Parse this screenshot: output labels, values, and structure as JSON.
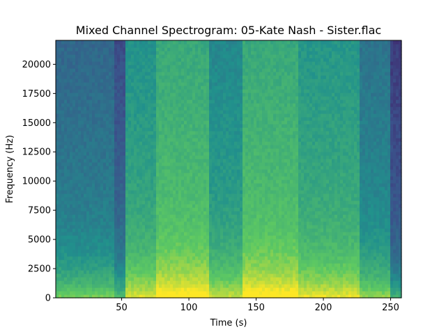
{
  "chart_data": {
    "type": "heatmap",
    "title": "Mixed Channel Spectrogram: 05-Kate Nash - Sister.flac",
    "xlabel": "Time (s)",
    "ylabel": "Frequency (Hz)",
    "xlim": [
      1,
      258
    ],
    "ylim": [
      0,
      22050
    ],
    "xticks": [
      50,
      100,
      150,
      200,
      250
    ],
    "yticks": [
      0,
      2500,
      5000,
      7500,
      10000,
      12500,
      15000,
      17500,
      20000
    ],
    "colormap": "viridis",
    "grid": false,
    "segments": [
      {
        "start": 1,
        "end": 45,
        "level": 0.45
      },
      {
        "start": 45,
        "end": 53,
        "level": 0.35
      },
      {
        "start": 53,
        "end": 76,
        "level": 0.62
      },
      {
        "start": 76,
        "end": 116,
        "level": 0.72
      },
      {
        "start": 116,
        "end": 140,
        "level": 0.58
      },
      {
        "start": 140,
        "end": 181,
        "level": 0.72
      },
      {
        "start": 181,
        "end": 227,
        "level": 0.64
      },
      {
        "start": 227,
        "end": 250,
        "level": 0.5
      },
      {
        "start": 250,
        "end": 258,
        "level": 0.3
      }
    ]
  }
}
